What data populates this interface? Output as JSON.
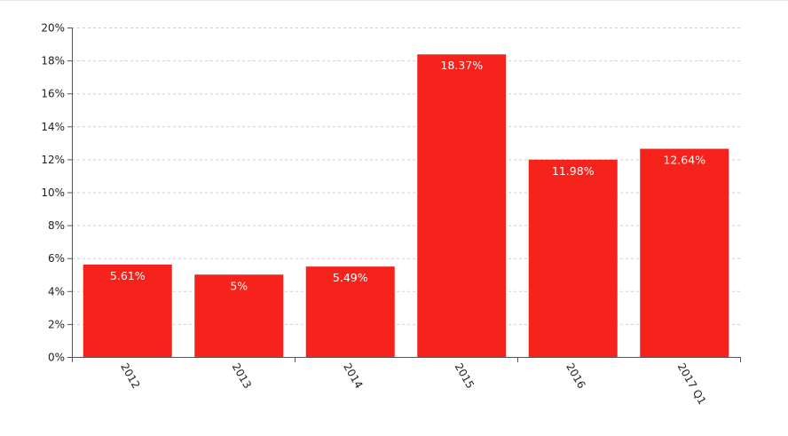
{
  "chart_data": {
    "type": "bar",
    "categories": [
      "2012",
      "2013",
      "2014",
      "2015",
      "2016",
      "2017 Q1"
    ],
    "values": [
      5.61,
      5,
      5.49,
      18.37,
      11.98,
      12.64
    ],
    "data_labels": [
      "5.61%",
      "5%",
      "5.49%",
      "18.37%",
      "11.98%",
      "12.64%"
    ],
    "y_ticks": [
      0,
      2,
      4,
      6,
      8,
      10,
      12,
      14,
      16,
      18,
      20
    ],
    "y_tick_labels": [
      "0%",
      "2%",
      "4%",
      "6%",
      "8%",
      "10%",
      "12%",
      "14%",
      "16%",
      "18%",
      "20%"
    ],
    "ylim": [
      0,
      20
    ],
    "grid": true,
    "bar_color": "#f5231c",
    "title": "",
    "xlabel": "",
    "ylabel": ""
  }
}
